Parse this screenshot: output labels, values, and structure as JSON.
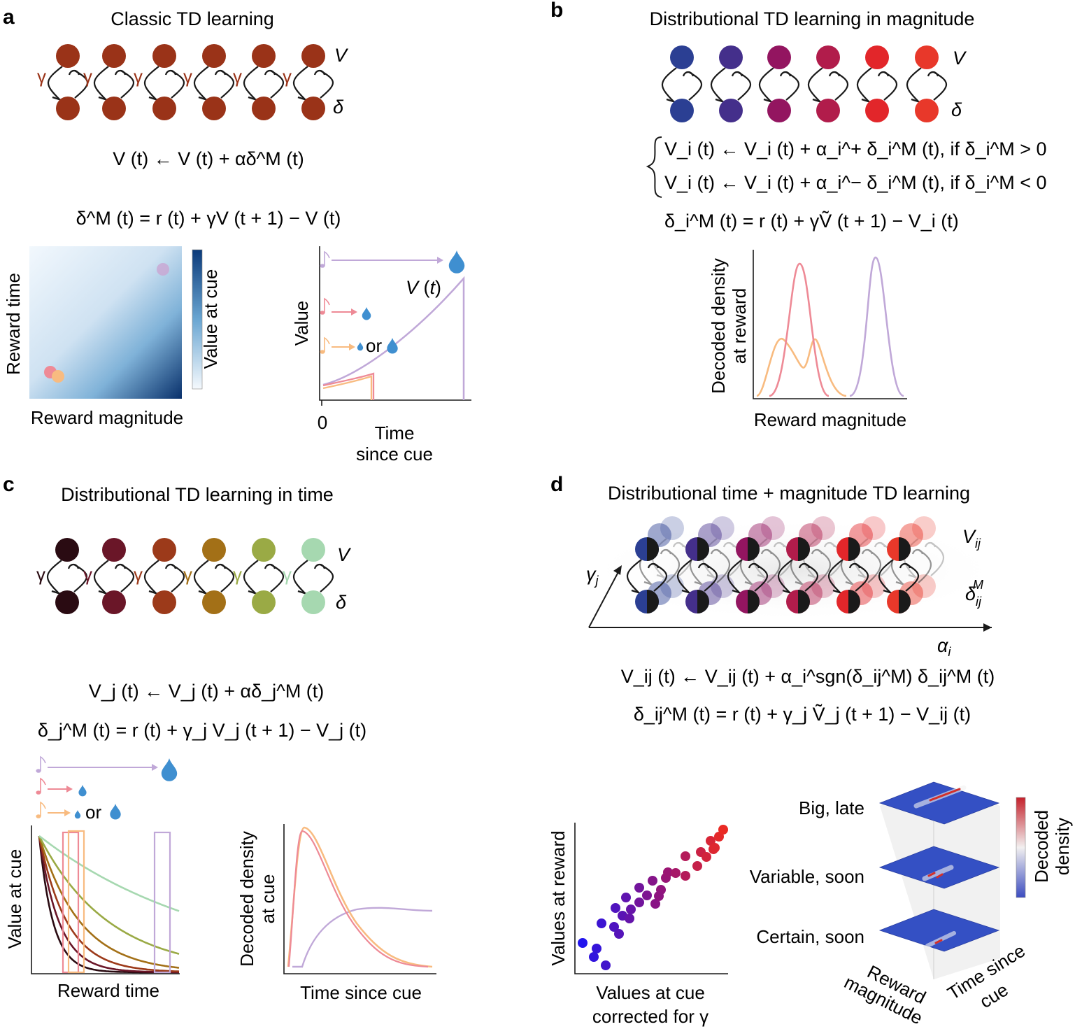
{
  "panels": {
    "a": {
      "label": "a",
      "title": "Classic TD learning",
      "node_top": "V",
      "node_bottom": "δ",
      "gamma": "γ",
      "eq1": "V (t) ← V (t) + αδ^M (t)",
      "eq2": "δ^M (t) = r (t) + γV (t + 1) − V (t)",
      "heatmap": {
        "xlabel": "Reward magnitude",
        "ylabel": "Reward time",
        "colorbar": "Value at cue"
      },
      "value_plot": {
        "ylabel": "Value",
        "xlabel": "Time since cue",
        "x0": "0",
        "curve_label": "V (t)",
        "or": "or"
      }
    },
    "b": {
      "label": "b",
      "title": "Distributional TD learning in magnitude",
      "node_top": "V",
      "node_bottom": "δ",
      "eq1": "V_i (t) ← V_i (t) + α_i^+ δ_i^M (t), if δ_i^M > 0",
      "eq2": "V_i (t) ← V_i (t) + α_i^− δ_i^M (t), if δ_i^M < 0",
      "eq3": "δ_i^M (t) = r (t) + γṼ (t + 1) − V_i (t)",
      "density_plot": {
        "ylabel": "Decoded density at reward",
        "xlabel": "Reward magnitude"
      }
    },
    "c": {
      "label": "c",
      "title": "Distributional TD learning in time",
      "node_top": "V",
      "node_bottom": "δ",
      "gamma": "γ",
      "eq1": "V_j (t) ← V_j (t) + αδ_j^M (t)",
      "eq2": "δ_j^M (t) = r (t) + γ_j V_j (t + 1) − V_j (t)",
      "or": "or",
      "value_plot": {
        "ylabel": "Value at cue",
        "xlabel": "Reward time"
      },
      "density_plot": {
        "ylabel": "Decoded density at cue",
        "xlabel": "Time since cue"
      }
    },
    "d": {
      "label": "d",
      "title": "Distributional time + magnitude TD learning",
      "node_top": "V_ij",
      "node_bottom": "δ_ij^M",
      "axis_y": "γ_j",
      "axis_x": "α_i",
      "eq1": "V_ij (t) ← V_ij (t) + α_i^sgn(δ_ij^M) δ_ij^M (t)",
      "eq2": "δ_ij^M (t) = r (t) + γ_j Ṽ_j (t + 1) − V_ij (t)",
      "scatter": {
        "ylabel": "Values at reward",
        "xlabel_1": "Values at cue",
        "xlabel_2": "corrected for γ"
      },
      "stack": {
        "layers": [
          "Big, late",
          "Variable, soon",
          "Certain, soon"
        ],
        "axis_left": "Reward magnitude",
        "axis_right": "Time since cue",
        "colorbar": "Decoded density"
      }
    }
  },
  "colors": {
    "a_nodes": "#9a3318",
    "b_nodes": [
      "#2b3f93",
      "#442f8b",
      "#931560",
      "#b11c4b",
      "#e2262a",
      "#e8382a"
    ],
    "c_nodes": [
      "#2a0b12",
      "#6a1628",
      "#9c3a1a",
      "#a37017",
      "#9aaa45",
      "#a6d8b0"
    ],
    "lavender": "#c0a8d8",
    "pink": "#ee8a96",
    "orange": "#f8bb80",
    "water": "#3f8fd0"
  }
}
